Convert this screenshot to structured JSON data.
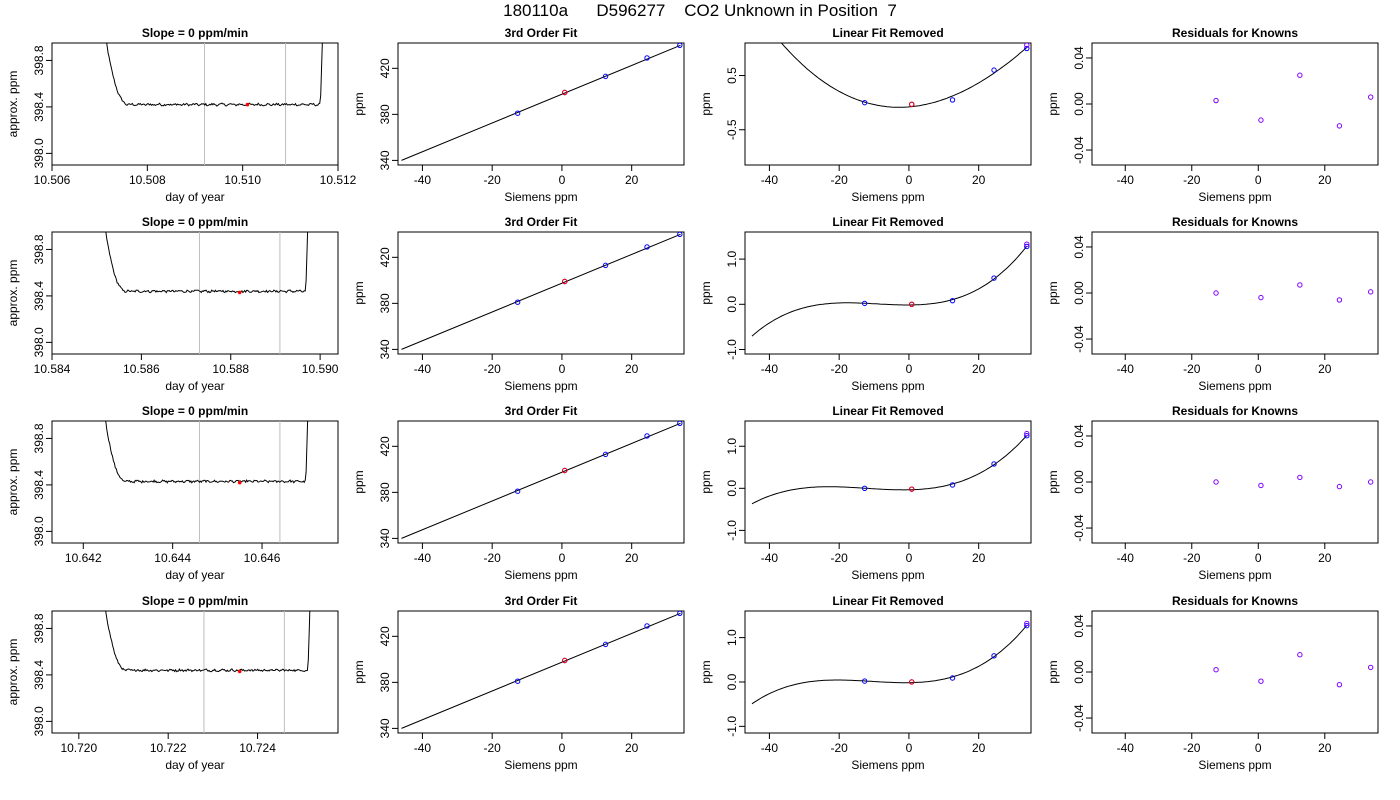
{
  "page_title": "180110a      D596277    CO2 Unknown in Position  7",
  "colors": {
    "ink": "#000000",
    "unknown_point": "#ff0000",
    "known_point": "#0000ff",
    "residual_point": "#8000ff",
    "window_line": "#bebebe"
  },
  "chart_data": [
    {
      "id": "r1c1",
      "type": "line",
      "title": "Slope =  0  ppm/min",
      "xlabel": "day of year",
      "ylabel": "approx. ppm",
      "xlim": [
        10.506,
        10.512
      ],
      "ylim": [
        397.9,
        398.95
      ],
      "xticks": [
        10.506,
        10.508,
        10.51,
        10.512
      ],
      "xticklabels": [
        "10.506",
        "10.508",
        "10.510",
        "10.512"
      ],
      "yticks": [
        398.0,
        398.4,
        398.8
      ],
      "yticklabels": [
        "398.0",
        "398.4",
        "398.8"
      ],
      "window": [
        10.5092,
        10.5109
      ],
      "trace": {
        "x_start": 10.50705,
        "x_end": 10.5117,
        "plateau": 398.42
      },
      "point": {
        "x": 10.5101,
        "y": 398.42
      }
    },
    {
      "id": "r1c2",
      "type": "scatter",
      "title": "3rd Order Fit",
      "xlabel": "Siemens ppm",
      "ylabel": "ppm",
      "xlim": [
        -47,
        35
      ],
      "ylim": [
        336,
        442
      ],
      "xticks": [
        -40,
        -20,
        0,
        20
      ],
      "xticklabels": [
        "-40",
        "-20",
        "0",
        "20"
      ],
      "yticks": [
        340,
        380,
        420
      ],
      "yticklabels": [
        "340",
        "380",
        "420"
      ],
      "fit": {
        "x": [
          -46,
          34
        ],
        "y": [
          340,
          440
        ]
      },
      "known": {
        "x": [
          -12.7,
          0.8,
          12.5,
          24.4,
          33.8
        ],
        "y": [
          381,
          399,
          413,
          429,
          440
        ]
      },
      "unknown": {
        "x": [
          0.8
        ],
        "y": [
          399
        ]
      }
    },
    {
      "id": "r1c3",
      "type": "scatter",
      "title": "Linear Fit Removed",
      "xlabel": "Siemens ppm",
      "ylabel": "ppm",
      "xlim": [
        -47,
        35
      ],
      "ylim": [
        -1.15,
        1.1
      ],
      "xticks": [
        -40,
        -20,
        0,
        20
      ],
      "xticklabels": [
        "-40",
        "-20",
        "0",
        "20"
      ],
      "yticks": [
        -0.5,
        0.5
      ],
      "yticklabels": [
        "-0.5",
        "0.5"
      ],
      "curve_range": [
        -45,
        33.8
      ],
      "known": {
        "x": [
          -12.7,
          0.8,
          12.5,
          24.4,
          33.8
        ],
        "y": [
          0.0,
          -0.03,
          0.05,
          0.6,
          1.0
        ]
      },
      "unknown": {
        "x": [
          0.8
        ],
        "y": [
          -0.03
        ]
      },
      "endpoint_extra": {
        "x": 33.8,
        "y": 1.06
      }
    },
    {
      "id": "r1c4",
      "type": "scatter",
      "title": "Residuals for Knowns",
      "xlabel": "Siemens ppm",
      "ylabel": "ppm",
      "xlim": [
        -50,
        36
      ],
      "ylim": [
        -0.053,
        0.053
      ],
      "xticks": [
        -40,
        -20,
        0,
        20
      ],
      "xticklabels": [
        "-40",
        "-20",
        "0",
        "20"
      ],
      "yticks": [
        -0.04,
        0.0,
        0.04
      ],
      "yticklabels": [
        "-0.04",
        "0.00",
        "0.04"
      ],
      "residuals": {
        "x": [
          -12.7,
          0.8,
          12.5,
          24.4,
          33.8
        ],
        "y": [
          0.003,
          -0.014,
          0.025,
          -0.019,
          0.006
        ]
      }
    },
    {
      "id": "r2c1",
      "type": "line",
      "title": "Slope =  0  ppm/min",
      "xlabel": "day of year",
      "ylabel": "approx. ppm",
      "xlim": [
        10.584,
        10.5904
      ],
      "ylim": [
        397.9,
        398.95
      ],
      "xticks": [
        10.584,
        10.586,
        10.588,
        10.59
      ],
      "xticklabels": [
        "10.584",
        "10.586",
        "10.588",
        "10.590"
      ],
      "yticks": [
        398.0,
        398.4,
        398.8
      ],
      "yticklabels": [
        "398.0",
        "398.4",
        "398.8"
      ],
      "window": [
        10.5873,
        10.5891
      ],
      "trace": {
        "x_start": 10.5851,
        "x_end": 10.58975,
        "plateau": 398.44
      },
      "point": {
        "x": 10.5882,
        "y": 398.43
      }
    },
    {
      "id": "r2c2",
      "type": "scatter",
      "title": "3rd Order Fit",
      "xlabel": "Siemens ppm",
      "ylabel": "ppm",
      "xlim": [
        -47,
        35
      ],
      "ylim": [
        336,
        442
      ],
      "xticks": [
        -40,
        -20,
        0,
        20
      ],
      "xticklabels": [
        "-40",
        "-20",
        "0",
        "20"
      ],
      "yticks": [
        340,
        380,
        420
      ],
      "yticklabels": [
        "340",
        "380",
        "420"
      ],
      "fit": {
        "x": [
          -46,
          34
        ],
        "y": [
          340,
          440
        ]
      },
      "known": {
        "x": [
          -12.7,
          0.8,
          12.5,
          24.4,
          33.8
        ],
        "y": [
          381,
          399,
          413,
          429,
          440
        ]
      },
      "unknown": {
        "x": [
          0.8
        ],
        "y": [
          399
        ]
      }
    },
    {
      "id": "r2c3",
      "type": "scatter",
      "title": "Linear Fit Removed",
      "xlabel": "Siemens ppm",
      "ylabel": "ppm",
      "xlim": [
        -47,
        35
      ],
      "ylim": [
        -1.1,
        1.6
      ],
      "xticks": [
        -40,
        -20,
        0,
        20
      ],
      "xticklabels": [
        "-40",
        "-20",
        "0",
        "20"
      ],
      "yticks": [
        -1.0,
        0.0,
        1.0
      ],
      "yticklabels": [
        "-1.0",
        "0.0",
        "1.0"
      ],
      "curve_range": [
        -45,
        33.8
      ],
      "known": {
        "x": [
          -12.7,
          0.8,
          12.5,
          24.4,
          33.8
        ],
        "y": [
          0.02,
          0.0,
          0.08,
          0.58,
          1.28
        ]
      },
      "unknown": {
        "x": [
          0.8
        ],
        "y": [
          0.0
        ]
      },
      "endpoint_extra": {
        "x": 33.8,
        "y": 1.33
      }
    },
    {
      "id": "r2c4",
      "type": "scatter",
      "title": "Residuals for Knowns",
      "xlabel": "Siemens ppm",
      "ylabel": "ppm",
      "xlim": [
        -50,
        36
      ],
      "ylim": [
        -0.053,
        0.053
      ],
      "xticks": [
        -40,
        -20,
        0,
        20
      ],
      "xticklabels": [
        "-40",
        "-20",
        "0",
        "20"
      ],
      "yticks": [
        -0.04,
        0.0,
        0.04
      ],
      "yticklabels": [
        "-0.04",
        "0.00",
        "0.04"
      ],
      "residuals": {
        "x": [
          -12.7,
          0.8,
          12.5,
          24.4,
          33.8
        ],
        "y": [
          0.0,
          -0.004,
          0.007,
          -0.006,
          0.001
        ]
      }
    },
    {
      "id": "r3c1",
      "type": "line",
      "title": "Slope =  0  ppm/min",
      "xlabel": "day of year",
      "ylabel": "approx. ppm",
      "xlim": [
        10.6413,
        10.6477
      ],
      "ylim": [
        397.9,
        398.95
      ],
      "xticks": [
        10.642,
        10.644,
        10.646
      ],
      "xticklabels": [
        "10.642",
        "10.644",
        "10.646"
      ],
      "yticks": [
        398.0,
        398.4,
        398.8
      ],
      "yticklabels": [
        "398.0",
        "398.4",
        "398.8"
      ],
      "window": [
        10.6446,
        10.6464
      ],
      "trace": {
        "x_start": 10.6424,
        "x_end": 10.64705,
        "plateau": 398.43
      },
      "point": {
        "x": 10.6455,
        "y": 398.42
      }
    },
    {
      "id": "r3c2",
      "type": "scatter",
      "title": "3rd Order Fit",
      "xlabel": "Siemens ppm",
      "ylabel": "ppm",
      "xlim": [
        -47,
        35
      ],
      "ylim": [
        336,
        442
      ],
      "xticks": [
        -40,
        -20,
        0,
        20
      ],
      "xticklabels": [
        "-40",
        "-20",
        "0",
        "20"
      ],
      "yticks": [
        340,
        380,
        420
      ],
      "yticklabels": [
        "340",
        "380",
        "420"
      ],
      "fit": {
        "x": [
          -46,
          34
        ],
        "y": [
          340,
          440
        ]
      },
      "known": {
        "x": [
          -12.7,
          0.8,
          12.5,
          24.4,
          33.8
        ],
        "y": [
          381,
          399,
          413,
          429,
          440
        ]
      },
      "unknown": {
        "x": [
          0.8
        ],
        "y": [
          399
        ]
      }
    },
    {
      "id": "r3c3",
      "type": "scatter",
      "title": "Linear Fit Removed",
      "xlabel": "Siemens ppm",
      "ylabel": "ppm",
      "xlim": [
        -47,
        35
      ],
      "ylim": [
        -1.3,
        1.6
      ],
      "xticks": [
        -40,
        -20,
        0,
        20
      ],
      "xticklabels": [
        "-40",
        "-20",
        "0",
        "20"
      ],
      "yticks": [
        -1.0,
        0.0,
        1.0
      ],
      "yticklabels": [
        "-1.0",
        "0.0",
        "1.0"
      ],
      "curve_range": [
        -45,
        33.8
      ],
      "known": {
        "x": [
          -12.7,
          0.8,
          12.5,
          24.4,
          33.8
        ],
        "y": [
          0.0,
          -0.02,
          0.08,
          0.58,
          1.25
        ]
      },
      "unknown": {
        "x": [
          0.8
        ],
        "y": [
          -0.02
        ]
      },
      "endpoint_extra": {
        "x": 33.8,
        "y": 1.3
      }
    },
    {
      "id": "r3c4",
      "type": "scatter",
      "title": "Residuals for Knowns",
      "xlabel": "Siemens ppm",
      "ylabel": "ppm",
      "xlim": [
        -50,
        36
      ],
      "ylim": [
        -0.053,
        0.053
      ],
      "xticks": [
        -40,
        -20,
        0,
        20
      ],
      "xticklabels": [
        "-40",
        "-20",
        "0",
        "20"
      ],
      "yticks": [
        -0.04,
        0.0,
        0.04
      ],
      "yticklabels": [
        "-0.04",
        "0.00",
        "0.04"
      ],
      "residuals": {
        "x": [
          -12.7,
          0.8,
          12.5,
          24.4,
          33.8
        ],
        "y": [
          0.0,
          -0.003,
          0.004,
          -0.004,
          0.0
        ]
      }
    },
    {
      "id": "r4c1",
      "type": "line",
      "title": "Slope =  0  ppm/min",
      "xlabel": "day of year",
      "ylabel": "approx. ppm",
      "xlim": [
        10.7194,
        10.7258
      ],
      "ylim": [
        397.9,
        398.95
      ],
      "xticks": [
        10.72,
        10.722,
        10.724
      ],
      "xticklabels": [
        "10.720",
        "10.722",
        "10.724"
      ],
      "yticks": [
        398.0,
        398.4,
        398.8
      ],
      "yticklabels": [
        "398.0",
        "398.4",
        "398.8"
      ],
      "window": [
        10.7228,
        10.7246
      ],
      "trace": {
        "x_start": 10.7205,
        "x_end": 10.7252,
        "plateau": 398.44
      },
      "point": {
        "x": 10.7236,
        "y": 398.43
      }
    },
    {
      "id": "r4c2",
      "type": "scatter",
      "title": "3rd Order Fit",
      "xlabel": "Siemens ppm",
      "ylabel": "ppm",
      "xlim": [
        -47,
        35
      ],
      "ylim": [
        336,
        442
      ],
      "xticks": [
        -40,
        -20,
        0,
        20
      ],
      "xticklabels": [
        "-40",
        "-20",
        "0",
        "20"
      ],
      "yticks": [
        340,
        380,
        420
      ],
      "yticklabels": [
        "340",
        "380",
        "420"
      ],
      "fit": {
        "x": [
          -46,
          34
        ],
        "y": [
          340,
          440
        ]
      },
      "known": {
        "x": [
          -12.7,
          0.8,
          12.5,
          24.4,
          33.8
        ],
        "y": [
          381,
          399,
          413,
          429,
          440
        ]
      },
      "unknown": {
        "x": [
          0.8
        ],
        "y": [
          399
        ]
      }
    },
    {
      "id": "r4c3",
      "type": "scatter",
      "title": "Linear Fit Removed",
      "xlabel": "Siemens ppm",
      "ylabel": "ppm",
      "xlim": [
        -47,
        35
      ],
      "ylim": [
        -1.15,
        1.6
      ],
      "xticks": [
        -40,
        -20,
        0,
        20
      ],
      "xticklabels": [
        "-40",
        "-20",
        "0",
        "20"
      ],
      "yticks": [
        -1.0,
        0.0,
        1.0
      ],
      "yticklabels": [
        "-1.0",
        "0.0",
        "1.0"
      ],
      "curve_range": [
        -45,
        33.8
      ],
      "known": {
        "x": [
          -12.7,
          0.8,
          12.5,
          24.4,
          33.8
        ],
        "y": [
          0.02,
          0.0,
          0.09,
          0.59,
          1.27
        ]
      },
      "unknown": {
        "x": [
          0.8
        ],
        "y": [
          0.0
        ]
      },
      "endpoint_extra": {
        "x": 33.8,
        "y": 1.32
      }
    },
    {
      "id": "r4c4",
      "type": "scatter",
      "title": "Residuals for Knowns",
      "xlabel": "Siemens ppm",
      "ylabel": "ppm",
      "xlim": [
        -50,
        36
      ],
      "ylim": [
        -0.053,
        0.053
      ],
      "xticks": [
        -40,
        -20,
        0,
        20
      ],
      "xticklabels": [
        "-40",
        "-20",
        "0",
        "20"
      ],
      "yticks": [
        -0.04,
        0.0,
        0.04
      ],
      "yticklabels": [
        "-0.04",
        "0.00",
        "0.04"
      ],
      "residuals": {
        "x": [
          -12.7,
          0.8,
          12.5,
          24.4,
          33.8
        ],
        "y": [
          0.002,
          -0.008,
          0.015,
          -0.011,
          0.004
        ]
      }
    }
  ]
}
